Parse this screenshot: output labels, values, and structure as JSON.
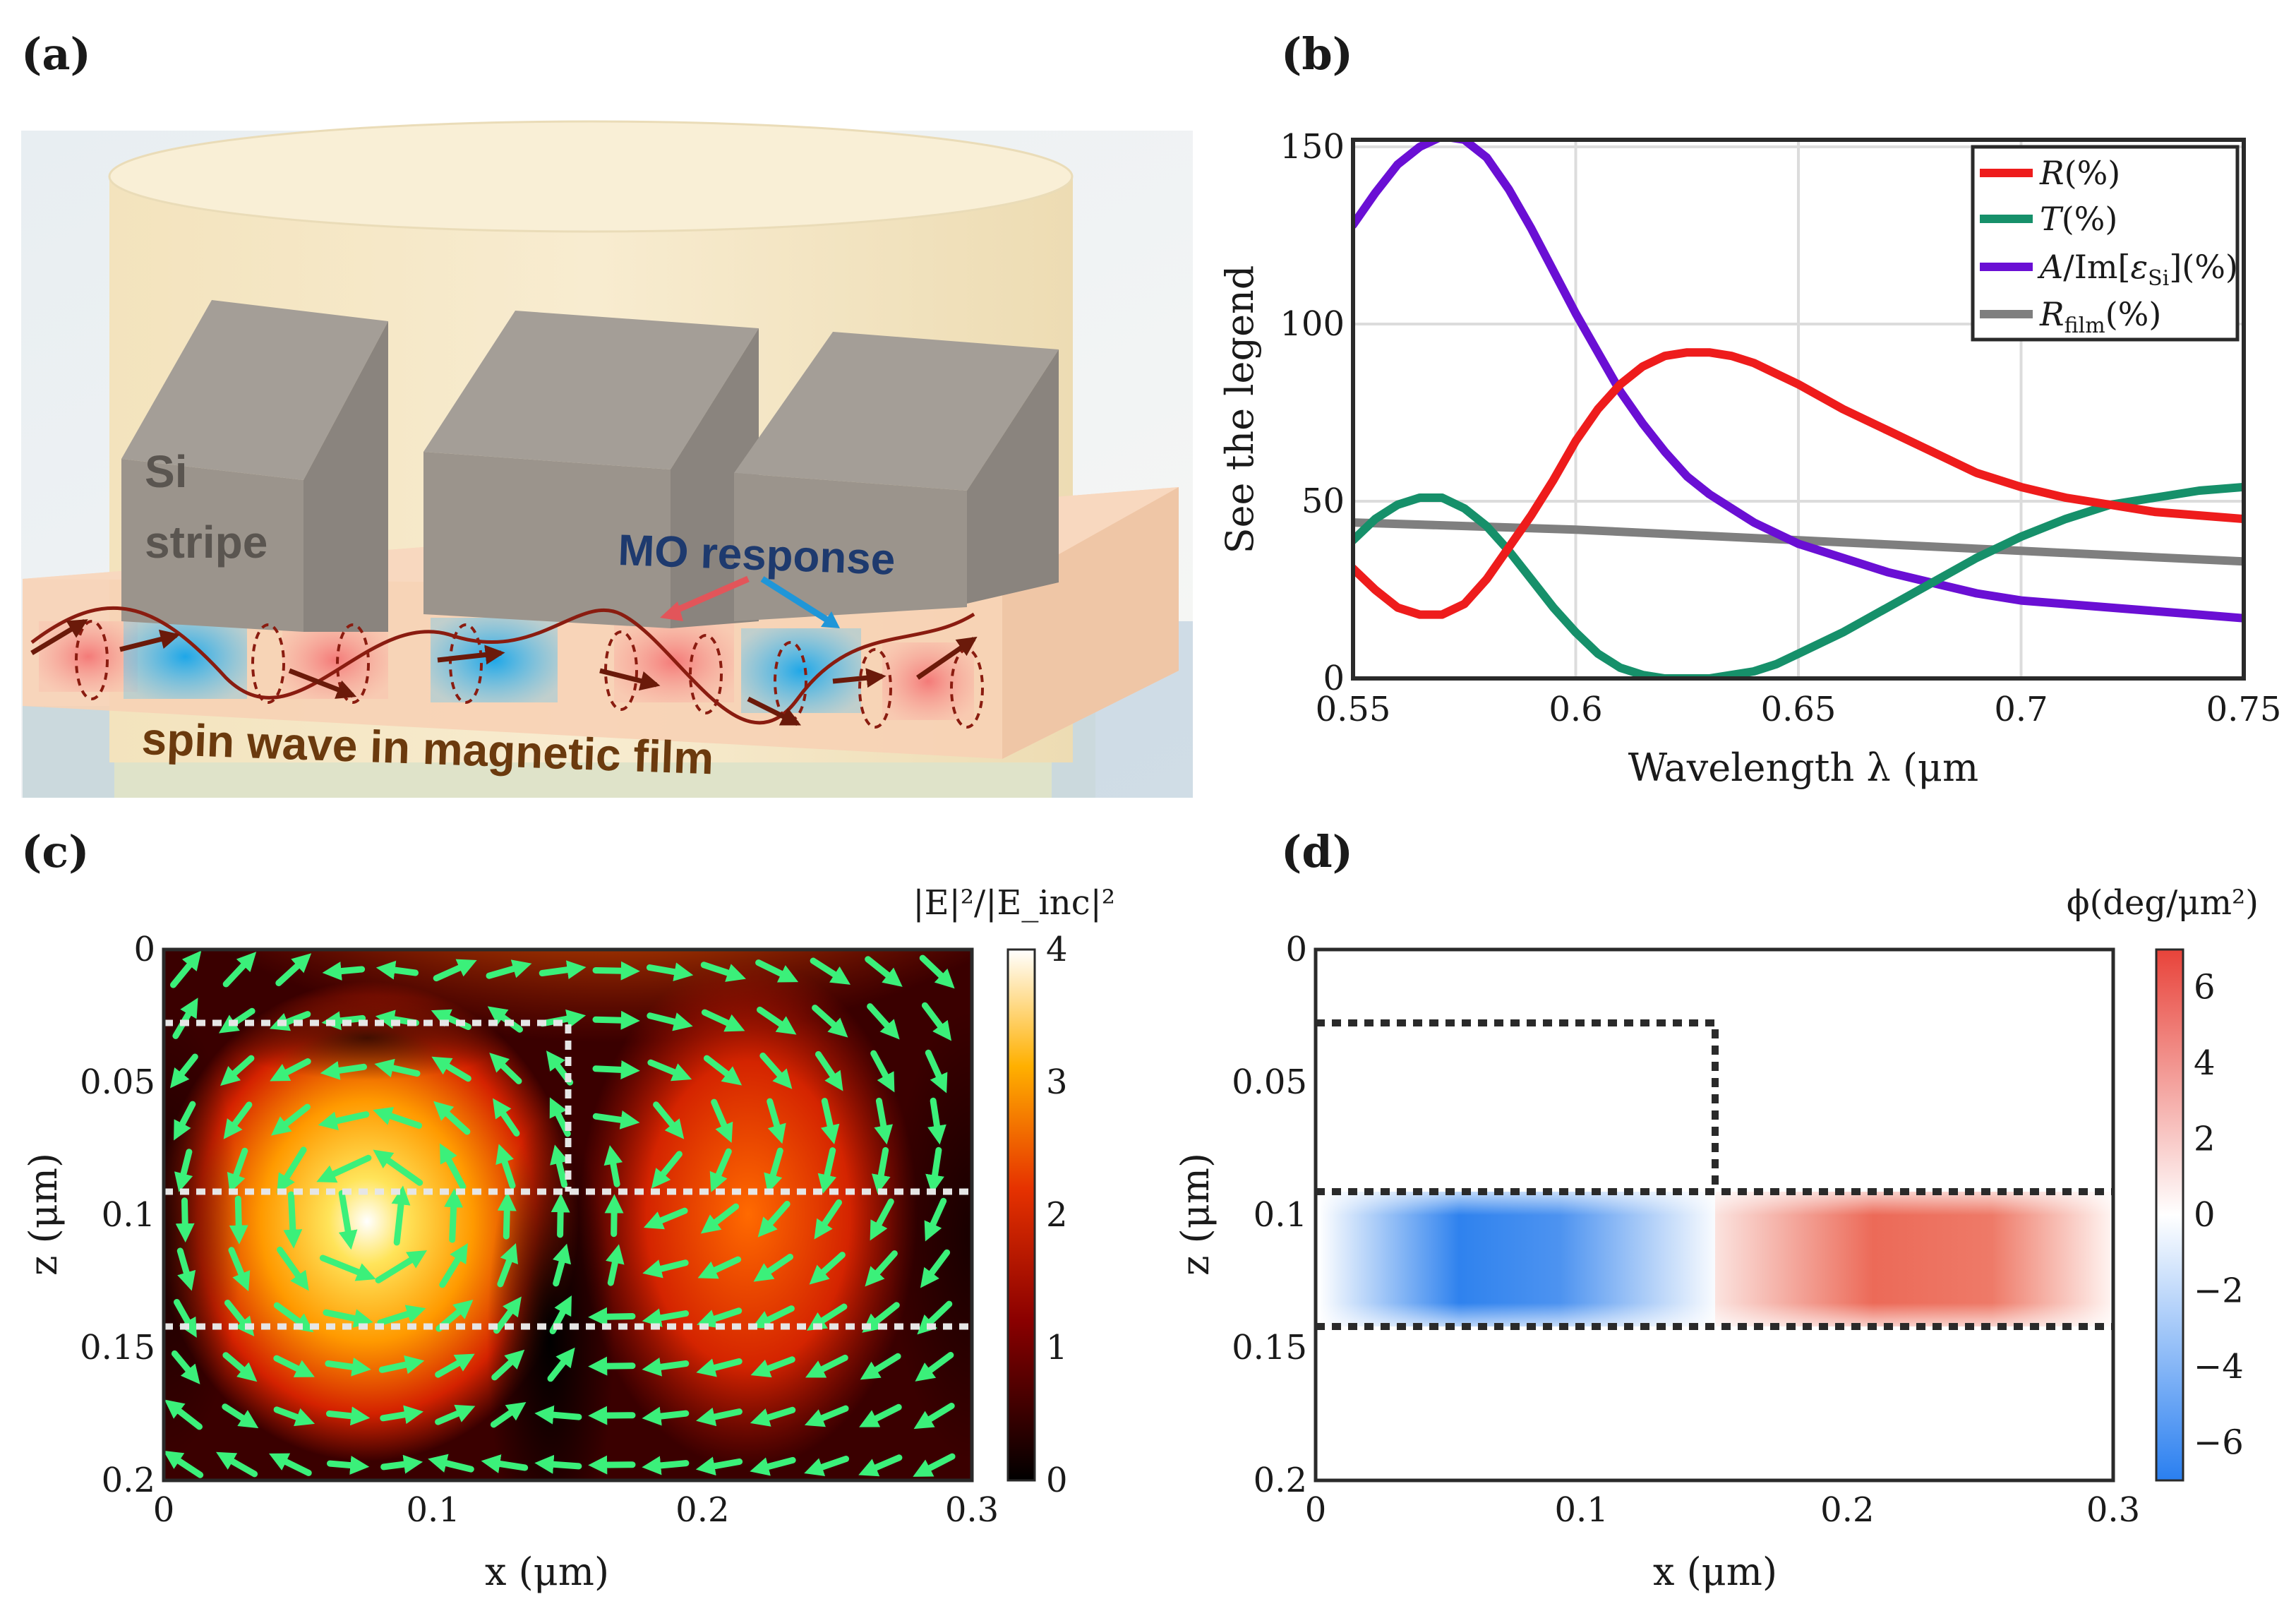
{
  "panels": {
    "a": {
      "label": "(a)",
      "text_si": "Si",
      "text_stripe": "stripe",
      "text_mo": "MO response",
      "text_spin": "spin wave in magnetic film"
    },
    "b": {
      "label": "(b)"
    },
    "c": {
      "label": "(c)"
    },
    "d": {
      "label": "(d)"
    }
  },
  "colors": {
    "R": "#ee1c1c",
    "T": "#16906a",
    "A": "#6a0fd4",
    "Rfilm": "#7f7f7f"
  },
  "chart_data": [
    {
      "id": "b",
      "type": "line",
      "xlabel": "Wavelength λ (μm",
      "ylabel": "See the legend",
      "xlim": [
        0.55,
        0.75
      ],
      "ylim": [
        0,
        152
      ],
      "xticks": [
        0.55,
        0.6,
        0.65,
        0.7,
        0.75
      ],
      "xtick_labels": [
        "0.55",
        "0.6",
        "0.65",
        "0.7",
        "0.75"
      ],
      "yticks": [
        0,
        50,
        100,
        150
      ],
      "ytick_labels": [
        "0",
        "50",
        "100",
        "150"
      ],
      "grid": true,
      "legend_position": "top-right",
      "series": [
        {
          "key": "R",
          "name": "R(%)",
          "x": [
            0.55,
            0.555,
            0.56,
            0.565,
            0.57,
            0.575,
            0.58,
            0.585,
            0.59,
            0.595,
            0.6,
            0.605,
            0.61,
            0.615,
            0.62,
            0.625,
            0.63,
            0.635,
            0.64,
            0.645,
            0.65,
            0.66,
            0.67,
            0.68,
            0.69,
            0.7,
            0.71,
            0.72,
            0.73,
            0.74,
            0.75
          ],
          "y": [
            31,
            25,
            20,
            18,
            18,
            21,
            28,
            37,
            46,
            56,
            67,
            76,
            83,
            88,
            91,
            92,
            92,
            91,
            89,
            86,
            83,
            76,
            70,
            64,
            58,
            54,
            51,
            49,
            47,
            46,
            45
          ]
        },
        {
          "key": "T",
          "name": "T(%)",
          "x": [
            0.55,
            0.555,
            0.56,
            0.565,
            0.57,
            0.575,
            0.58,
            0.585,
            0.59,
            0.595,
            0.6,
            0.605,
            0.61,
            0.615,
            0.62,
            0.625,
            0.63,
            0.635,
            0.64,
            0.645,
            0.65,
            0.66,
            0.67,
            0.68,
            0.69,
            0.7,
            0.71,
            0.72,
            0.73,
            0.74,
            0.75
          ],
          "y": [
            39,
            45,
            49,
            51,
            51,
            48,
            43,
            36,
            28,
            20,
            13,
            7,
            3,
            1,
            0,
            0,
            0,
            1,
            2,
            4,
            7,
            13,
            20,
            27,
            34,
            40,
            45,
            49,
            51,
            53,
            54
          ]
        },
        {
          "key": "A",
          "name": "A/Im[ε_Si](%)",
          "x": [
            0.55,
            0.555,
            0.56,
            0.565,
            0.57,
            0.575,
            0.58,
            0.585,
            0.59,
            0.595,
            0.6,
            0.605,
            0.61,
            0.615,
            0.62,
            0.625,
            0.63,
            0.635,
            0.64,
            0.645,
            0.65,
            0.66,
            0.67,
            0.68,
            0.69,
            0.7,
            0.71,
            0.72,
            0.73,
            0.74,
            0.75
          ],
          "y": [
            128,
            137,
            145,
            150,
            153,
            152,
            147,
            138,
            127,
            115,
            103,
            92,
            81,
            72,
            64,
            57,
            52,
            48,
            44,
            41,
            38,
            34,
            30,
            27,
            24,
            22,
            21,
            20,
            19,
            18,
            17
          ]
        },
        {
          "key": "Rfilm",
          "name": "R_film(%)",
          "x": [
            0.55,
            0.6,
            0.65,
            0.7,
            0.75
          ],
          "y": [
            44,
            42,
            39,
            36,
            33
          ]
        }
      ],
      "legend_labels": {
        "R": {
          "sym": "R",
          "rest": "(%)"
        },
        "T": {
          "sym": "T",
          "rest": "(%)"
        },
        "A": {
          "sym": "A",
          "mid": "/Im[",
          "eps": "ε",
          "sub": "Si",
          "rest": "](%)"
        },
        "Rfilm": {
          "sym": "R",
          "sub": "film",
          "rest": "(%)"
        }
      }
    },
    {
      "id": "c",
      "type": "heatmap",
      "xlabel": "x (μm)",
      "ylabel": "z (μm)",
      "xlim": [
        0,
        0.3
      ],
      "ylim": [
        0,
        0.2
      ],
      "xticks": [
        0,
        0.1,
        0.2,
        0.3
      ],
      "xtick_labels": [
        "0",
        "0.1",
        "0.2",
        "0.3"
      ],
      "yticks": [
        0,
        0.05,
        0.1,
        0.15,
        0.2
      ],
      "ytick_labels": [
        "0",
        "0.05",
        "0.1",
        "0.15",
        "0.2"
      ],
      "colorbar_title": "|E|²/|E_inc|²",
      "colorbar_range": [
        0,
        4
      ],
      "colorbar_ticks": [
        "0",
        "1",
        "2",
        "3",
        "4"
      ],
      "structure_outline": {
        "stripe_x": [
          0,
          0.15
        ],
        "stripe_z": [
          0.03,
          0.093
        ],
        "film_z": [
          0.093,
          0.143
        ]
      }
    },
    {
      "id": "d",
      "type": "heatmap",
      "xlabel": "x (μm)",
      "ylabel": "z (μm)",
      "xlim": [
        0,
        0.3
      ],
      "ylim": [
        0,
        0.2
      ],
      "xticks": [
        0,
        0.1,
        0.2,
        0.3
      ],
      "xtick_labels": [
        "0",
        "0.1",
        "0.2",
        "0.3"
      ],
      "yticks": [
        0,
        0.05,
        0.1,
        0.15,
        0.2
      ],
      "ytick_labels": [
        "0",
        "0.05",
        "0.1",
        "0.15",
        "0.2"
      ],
      "colorbar_title": "ϕ(deg/μm²)",
      "colorbar_range": [
        -7,
        7
      ],
      "colorbar_ticks": [
        "−6",
        "−4",
        "−2",
        "0",
        "2",
        "4",
        "6"
      ],
      "structure_outline": {
        "stripe_x": [
          0,
          0.15
        ],
        "stripe_z": [
          0.03,
          0.093
        ],
        "film_z": [
          0.093,
          0.143
        ]
      }
    }
  ]
}
